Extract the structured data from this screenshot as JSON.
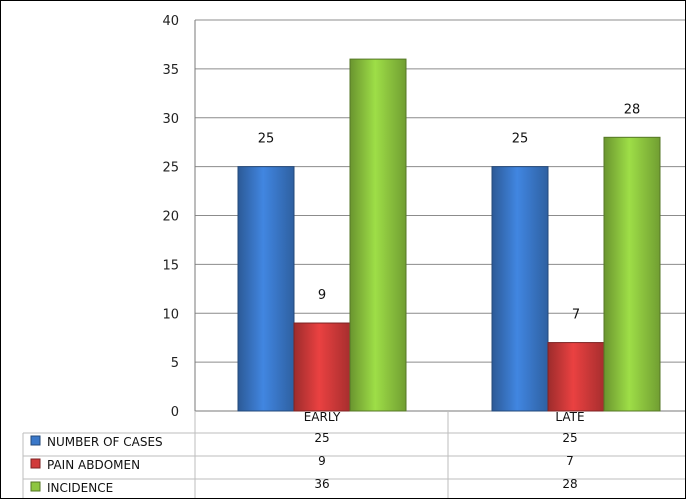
{
  "chart_data": {
    "type": "bar",
    "categories": [
      "EARLY",
      "LATE"
    ],
    "series": [
      {
        "name": "NUMBER OF CASES",
        "values": [
          25,
          25
        ],
        "color": "#3a78c9"
      },
      {
        "name": "PAIN ABDOMEN",
        "values": [
          9,
          7
        ],
        "color": "#d13a3a"
      },
      {
        "name": "INCIDENCE",
        "values": [
          36,
          28
        ],
        "color": "#8dc63f"
      }
    ],
    "ylim": [
      0,
      40
    ],
    "yticks": [
      0,
      5,
      10,
      15,
      20,
      25,
      30,
      35,
      40
    ],
    "data_labels": [
      [
        "25",
        "25"
      ],
      [
        "9",
        "7"
      ],
      [
        "",
        "28"
      ]
    ],
    "table_values": [
      [
        "25",
        "25"
      ],
      [
        "9",
        "7"
      ],
      [
        "36",
        "28"
      ]
    ],
    "grid": true,
    "legend": "data table (bottom-left)"
  }
}
